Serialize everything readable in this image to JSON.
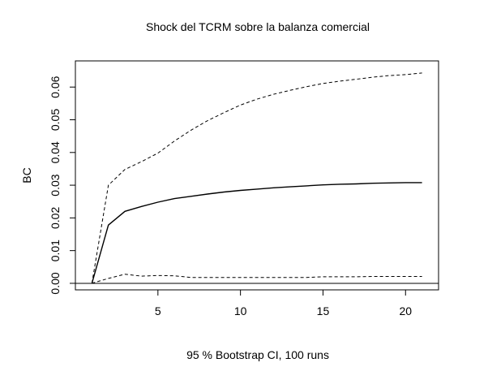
{
  "chart_data": {
    "type": "line",
    "title": "Shock del TCRM sobre la balanza comercial",
    "xlabel": "95 % Bootstrap CI,  100 runs",
    "ylabel": "BC",
    "xlim": [
      0,
      22
    ],
    "ylim": [
      -0.002,
      0.068
    ],
    "x_ticks": [
      5,
      10,
      15,
      20
    ],
    "x_tick_labels": [
      "5",
      "10",
      "15",
      "20"
    ],
    "y_ticks": [
      0.0,
      0.01,
      0.02,
      0.03,
      0.04,
      0.05,
      0.06
    ],
    "y_tick_labels": [
      "0.00",
      "0.01",
      "0.02",
      "0.03",
      "0.04",
      "0.05",
      "0.06"
    ],
    "zero_line": 0,
    "grid": false,
    "legend": "none",
    "x": [
      1,
      2,
      3,
      4,
      5,
      6,
      7,
      8,
      9,
      10,
      11,
      12,
      13,
      14,
      15,
      16,
      17,
      18,
      19,
      20,
      21
    ],
    "series": [
      {
        "style": "solid",
        "color": "#000000",
        "values": [
          0.0,
          0.0178,
          0.022,
          0.0235,
          0.0248,
          0.0259,
          0.0266,
          0.0273,
          0.0279,
          0.0284,
          0.0288,
          0.0292,
          0.0295,
          0.0298,
          0.0301,
          0.0303,
          0.0304,
          0.0306,
          0.0307,
          0.0308,
          0.0308
        ]
      },
      {
        "style": "dashed",
        "color": "#000000",
        "values": [
          0.0,
          0.03,
          0.0348,
          0.0372,
          0.0398,
          0.0435,
          0.0468,
          0.0497,
          0.0522,
          0.0545,
          0.0563,
          0.0578,
          0.059,
          0.0601,
          0.0611,
          0.0618,
          0.0624,
          0.063,
          0.0635,
          0.0638,
          0.0643
        ]
      },
      {
        "style": "dashed",
        "color": "#000000",
        "values": [
          0.0,
          0.0015,
          0.0028,
          0.0022,
          0.0024,
          0.0023,
          0.0018,
          0.0018,
          0.0018,
          0.0018,
          0.0018,
          0.0018,
          0.0018,
          0.0018,
          0.002,
          0.002,
          0.002,
          0.0021,
          0.0021,
          0.0021,
          0.0021
        ]
      }
    ]
  }
}
